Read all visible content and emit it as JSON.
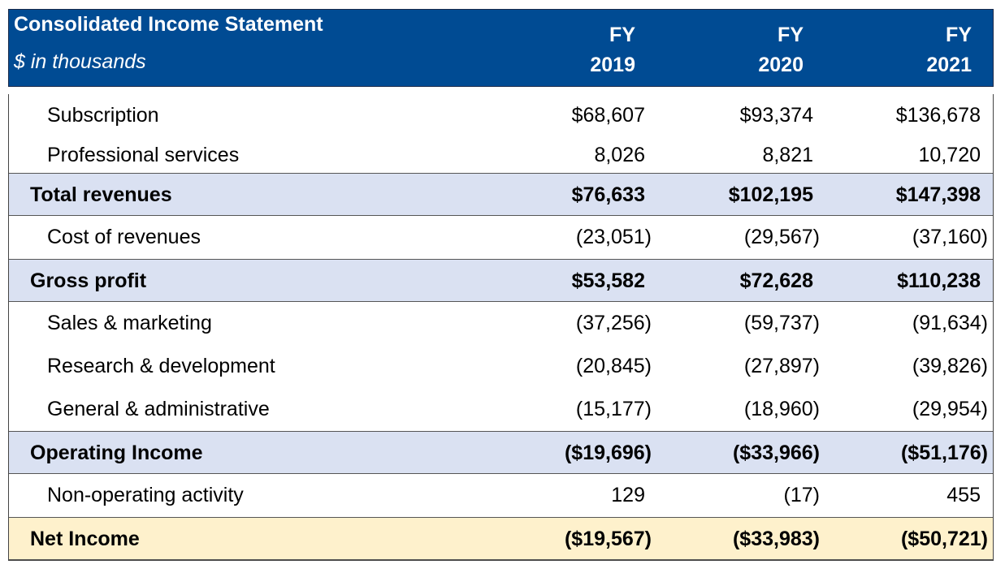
{
  "header": {
    "title": "Consolidated Income Statement",
    "units": "$ in thousands",
    "years": [
      {
        "label": "FY",
        "year": "2019"
      },
      {
        "label": "FY",
        "year": "2020"
      },
      {
        "label": "FY",
        "year": "2021"
      }
    ]
  },
  "rows": [
    {
      "label": "Subscription",
      "values": [
        "$68,607",
        "$93,374",
        "$136,678"
      ]
    },
    {
      "label": "Professional services",
      "values": [
        "8,026",
        "8,821",
        "10,720"
      ]
    },
    {
      "label": "Total revenues",
      "values": [
        "$76,633",
        "$102,195",
        "$147,398"
      ]
    },
    {
      "label": "Cost of revenues",
      "values": [
        "(23,051)",
        "(29,567)",
        "(37,160)"
      ]
    },
    {
      "label": "Gross profit",
      "values": [
        "$53,582",
        "$72,628",
        "$110,238"
      ]
    },
    {
      "label": "Sales & marketing",
      "values": [
        "(37,256)",
        "(59,737)",
        "(91,634)"
      ]
    },
    {
      "label": "Research & development",
      "values": [
        "(20,845)",
        "(27,897)",
        "(39,826)"
      ]
    },
    {
      "label": "General & administrative",
      "values": [
        "(15,177)",
        "(18,960)",
        "(29,954)"
      ]
    },
    {
      "label": "Operating Income",
      "values": [
        "($19,696)",
        "($33,966)",
        "($51,176)"
      ]
    },
    {
      "label": "Non-operating activity",
      "values": [
        "129",
        "(17)",
        "455"
      ]
    },
    {
      "label": "Net Income",
      "values": [
        "($19,567)",
        "($33,983)",
        "($50,721)"
      ]
    }
  ]
}
